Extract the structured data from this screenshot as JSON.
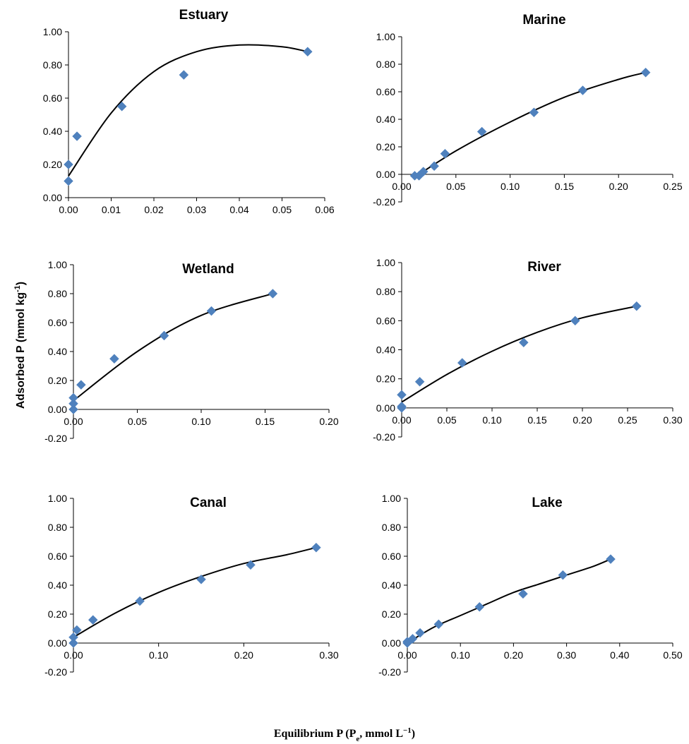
{
  "figure": {
    "ylabel": "Adsorbed P (mmol kg",
    "ylabel_sup": "-1",
    "ylabel_end": ")",
    "xlabel_prefix": "Equilibrium P (P",
    "xlabel_sub": "e",
    "xlabel_mid": ", mmol L",
    "xlabel_sup": "−1",
    "xlabel_end": ")",
    "marker_color": "#4F81BD",
    "curve_color": "#000000"
  },
  "chart_data": [
    {
      "type": "scatter",
      "title": "Estuary",
      "xlim": [
        0,
        0.06
      ],
      "xticks": [
        0,
        0.01,
        0.02,
        0.03,
        0.04,
        0.05,
        0.06
      ],
      "xtick_labels": [
        "0.00",
        "0.01",
        "0.02",
        "0.03",
        "0.04",
        "0.05",
        "0.06"
      ],
      "ylim": [
        0,
        1.0
      ],
      "yticks": [
        0,
        0.2,
        0.4,
        0.6,
        0.8,
        1.0
      ],
      "ytick_labels": [
        "0.00",
        "0.20",
        "0.40",
        "0.60",
        "0.80",
        "1.00"
      ],
      "points": [
        [
          0.0,
          0.1
        ],
        [
          0.0,
          0.2
        ],
        [
          0.002,
          0.37
        ],
        [
          0.0125,
          0.55
        ],
        [
          0.027,
          0.74
        ],
        [
          0.056,
          0.88
        ]
      ],
      "curve": [
        [
          0.0,
          0.13
        ],
        [
          0.01,
          0.51
        ],
        [
          0.02,
          0.76
        ],
        [
          0.03,
          0.88
        ],
        [
          0.04,
          0.92
        ],
        [
          0.05,
          0.91
        ],
        [
          0.056,
          0.88
        ]
      ]
    },
    {
      "type": "scatter",
      "title": "Marine",
      "xlim": [
        0,
        0.25
      ],
      "xticks": [
        0,
        0.05,
        0.1,
        0.15,
        0.2,
        0.25
      ],
      "xtick_labels": [
        "0.00",
        "0.05",
        "0.10",
        "0.15",
        "0.20",
        "0.25"
      ],
      "ylim": [
        -0.2,
        1.0
      ],
      "yticks": [
        -0.2,
        0,
        0.2,
        0.4,
        0.6,
        0.8,
        1.0
      ],
      "ytick_labels": [
        "-0.20",
        "0.00",
        "0.20",
        "0.40",
        "0.60",
        "0.80",
        "1.00"
      ],
      "points": [
        [
          0.012,
          -0.01
        ],
        [
          0.016,
          -0.01
        ],
        [
          0.02,
          0.02
        ],
        [
          0.03,
          0.06
        ],
        [
          0.04,
          0.15
        ],
        [
          0.074,
          0.31
        ],
        [
          0.122,
          0.45
        ],
        [
          0.167,
          0.61
        ],
        [
          0.225,
          0.74
        ]
      ],
      "curve": [
        [
          0.012,
          -0.02
        ],
        [
          0.05,
          0.17
        ],
        [
          0.1,
          0.38
        ],
        [
          0.15,
          0.56
        ],
        [
          0.2,
          0.69
        ],
        [
          0.225,
          0.74
        ]
      ]
    },
    {
      "type": "scatter",
      "title": "Wetland",
      "xlim": [
        0,
        0.2
      ],
      "xticks": [
        0,
        0.05,
        0.1,
        0.15,
        0.2
      ],
      "xtick_labels": [
        "0.00",
        "0.05",
        "0.10",
        "0.15",
        "0.20"
      ],
      "ylim": [
        -0.2,
        1.0
      ],
      "yticks": [
        -0.2,
        0,
        0.2,
        0.4,
        0.6,
        0.8,
        1.0
      ],
      "ytick_labels": [
        "-0.20",
        "0.00",
        "0.20",
        "0.40",
        "0.60",
        "0.80",
        "1.00"
      ],
      "points": [
        [
          0.0,
          0.0
        ],
        [
          0.0,
          0.04
        ],
        [
          0.0,
          0.08
        ],
        [
          0.006,
          0.17
        ],
        [
          0.032,
          0.35
        ],
        [
          0.071,
          0.51
        ],
        [
          0.108,
          0.68
        ],
        [
          0.156,
          0.8
        ]
      ],
      "curve": [
        [
          0.0,
          0.06
        ],
        [
          0.05,
          0.4
        ],
        [
          0.1,
          0.65
        ],
        [
          0.156,
          0.8
        ]
      ]
    },
    {
      "type": "scatter",
      "title": "River",
      "xlim": [
        0,
        0.3
      ],
      "xticks": [
        0,
        0.05,
        0.1,
        0.15,
        0.2,
        0.25,
        0.3
      ],
      "xtick_labels": [
        "0.00",
        "0.05",
        "0.10",
        "0.15",
        "0.20",
        "0.25",
        "0.30"
      ],
      "ylim": [
        -0.2,
        1.0
      ],
      "yticks": [
        -0.2,
        0,
        0.2,
        0.4,
        0.6,
        0.8,
        1.0
      ],
      "ytick_labels": [
        "-0.20",
        "0.00",
        "0.20",
        "0.40",
        "0.60",
        "0.80",
        "1.00"
      ],
      "points": [
        [
          0.0,
          0.0
        ],
        [
          0.0,
          0.01
        ],
        [
          0.0,
          0.09
        ],
        [
          0.02,
          0.18
        ],
        [
          0.067,
          0.31
        ],
        [
          0.135,
          0.45
        ],
        [
          0.192,
          0.6
        ],
        [
          0.26,
          0.7
        ]
      ],
      "curve": [
        [
          0.0,
          0.04
        ],
        [
          0.05,
          0.23
        ],
        [
          0.1,
          0.39
        ],
        [
          0.15,
          0.52
        ],
        [
          0.2,
          0.62
        ],
        [
          0.26,
          0.7
        ]
      ]
    },
    {
      "type": "scatter",
      "title": "Canal",
      "xlim": [
        0,
        0.3
      ],
      "xticks": [
        0,
        0.1,
        0.2,
        0.3
      ],
      "xtick_labels": [
        "0.00",
        "0.10",
        "0.20",
        "0.30"
      ],
      "ylim": [
        -0.2,
        1.0
      ],
      "yticks": [
        -0.2,
        0,
        0.2,
        0.4,
        0.6,
        0.8,
        1.0
      ],
      "ytick_labels": [
        "-0.20",
        "0.00",
        "0.20",
        "0.40",
        "0.60",
        "0.80",
        "1.00"
      ],
      "points": [
        [
          0.0,
          0.0
        ],
        [
          0.0,
          0.04
        ],
        [
          0.004,
          0.09
        ],
        [
          0.023,
          0.16
        ],
        [
          0.078,
          0.29
        ],
        [
          0.15,
          0.44
        ],
        [
          0.208,
          0.54
        ],
        [
          0.285,
          0.66
        ]
      ],
      "curve": [
        [
          0.0,
          0.04
        ],
        [
          0.05,
          0.21
        ],
        [
          0.1,
          0.35
        ],
        [
          0.15,
          0.46
        ],
        [
          0.2,
          0.55
        ],
        [
          0.25,
          0.61
        ],
        [
          0.285,
          0.66
        ]
      ]
    },
    {
      "type": "scatter",
      "title": "Lake",
      "xlim": [
        0,
        0.5
      ],
      "xticks": [
        0,
        0.1,
        0.2,
        0.3,
        0.4,
        0.5
      ],
      "xtick_labels": [
        "0.00",
        "0.10",
        "0.20",
        "0.30",
        "0.40",
        "0.50"
      ],
      "ylim": [
        -0.2,
        1.0
      ],
      "yticks": [
        -0.2,
        0,
        0.2,
        0.4,
        0.6,
        0.8,
        1.0
      ],
      "ytick_labels": [
        "-0.20",
        "0.00",
        "0.20",
        "0.40",
        "0.60",
        "0.80",
        "1.00"
      ],
      "points": [
        [
          0.0,
          0.0
        ],
        [
          0.0,
          0.01
        ],
        [
          0.01,
          0.03
        ],
        [
          0.024,
          0.07
        ],
        [
          0.059,
          0.13
        ],
        [
          0.136,
          0.25
        ],
        [
          0.218,
          0.34
        ],
        [
          0.293,
          0.47
        ],
        [
          0.383,
          0.58
        ]
      ],
      "curve": [
        [
          0.0,
          0.0
        ],
        [
          0.05,
          0.11
        ],
        [
          0.1,
          0.19
        ],
        [
          0.15,
          0.27
        ],
        [
          0.2,
          0.35
        ],
        [
          0.25,
          0.41
        ],
        [
          0.3,
          0.47
        ],
        [
          0.35,
          0.53
        ],
        [
          0.383,
          0.58
        ]
      ]
    }
  ]
}
